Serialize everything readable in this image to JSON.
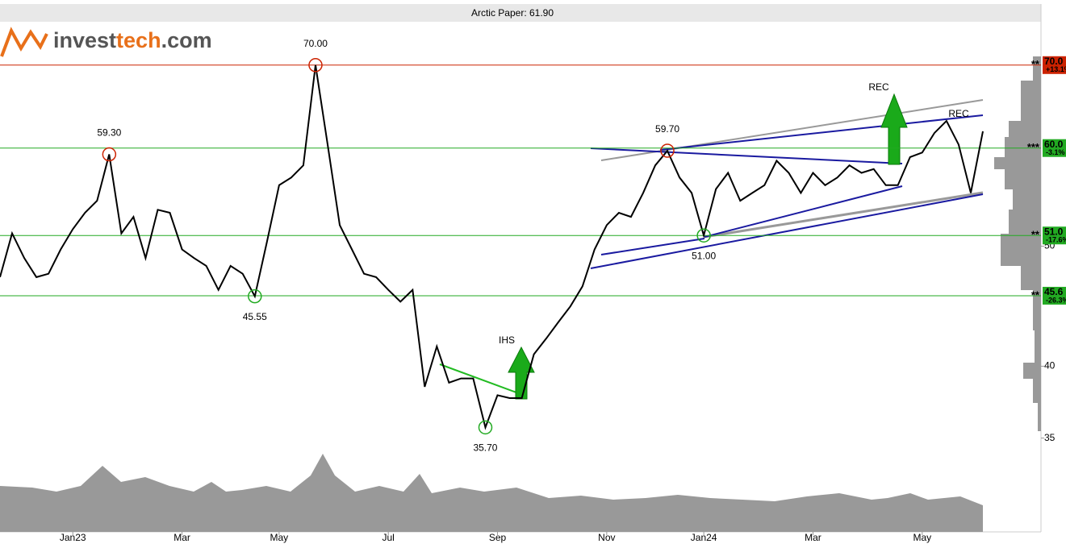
{
  "chart_data": {
    "type": "line",
    "title": "Arctic Paper: 61.90",
    "logo": [
      "invest",
      "tech",
      ".com"
    ],
    "categories": [
      null,
      null,
      null,
      null,
      null,
      null,
      "Jan23",
      null,
      null,
      null,
      null,
      null,
      null,
      null,
      null,
      "Mar",
      null,
      null,
      null,
      null,
      null,
      null,
      null,
      "May",
      null,
      null,
      null,
      null,
      null,
      null,
      null,
      null,
      "Jul",
      null,
      null,
      null,
      null,
      null,
      null,
      null,
      null,
      "Sep",
      null,
      null,
      null,
      null,
      null,
      null,
      null,
      null,
      "Nov",
      null,
      null,
      null,
      null,
      null,
      null,
      null,
      "Jan24",
      null,
      null,
      null,
      null,
      null,
      null,
      null,
      null,
      "Mar",
      null,
      null,
      null,
      null,
      null,
      null,
      null,
      null,
      "May",
      null,
      null,
      null,
      null,
      null
    ],
    "values": [
      47.2,
      51.2,
      48.9,
      47.2,
      47.5,
      49.7,
      51.6,
      53.2,
      54.4,
      59.3,
      51.2,
      52.8,
      48.9,
      53.5,
      53.2,
      49.7,
      48.9,
      48.2,
      46.1,
      48.2,
      47.5,
      45.55,
      50.4,
      56.0,
      56.8,
      58.1,
      70.0,
      60.4,
      52.0,
      49.7,
      47.5,
      47.2,
      46.1,
      45.1,
      46.1,
      38.5,
      41.5,
      38.8,
      39.1,
      39.1,
      35.7,
      37.9,
      37.7,
      37.7,
      40.9,
      42.1,
      43.4,
      44.7,
      46.4,
      49.7,
      52.0,
      53.2,
      52.8,
      55.2,
      58.1,
      59.7,
      56.8,
      55.2,
      51.0,
      55.6,
      57.3,
      54.4,
      55.2,
      56.0,
      58.6,
      57.3,
      55.2,
      57.3,
      56.0,
      56.8,
      58.1,
      57.3,
      57.7,
      56.0,
      56.0,
      59.0,
      59.5,
      61.7,
      63.1,
      60.4,
      55.2,
      61.9
    ],
    "value_labels": [
      null,
      null,
      null,
      null,
      null,
      null,
      null,
      null,
      null,
      "59.30",
      null,
      null,
      null,
      null,
      null,
      null,
      null,
      null,
      null,
      null,
      null,
      "45.55",
      null,
      null,
      null,
      null,
      "70.00",
      null,
      null,
      null,
      null,
      null,
      null,
      null,
      null,
      null,
      null,
      null,
      null,
      null,
      "35.70",
      null,
      null,
      null,
      null,
      null,
      null,
      null,
      null,
      null,
      null,
      null,
      null,
      null,
      null,
      "59.70",
      null,
      null,
      "51.00",
      null,
      null,
      null,
      null,
      null,
      null,
      null,
      null,
      null,
      null,
      null,
      null,
      null,
      null,
      null,
      null,
      null,
      null,
      null,
      null,
      null,
      null,
      null
    ],
    "color": "#000000",
    "log": true,
    "ylim": [
      29.4,
      76.1
    ],
    "yticks": [
      35,
      40,
      50
    ],
    "levels": [
      {
        "value": 70,
        "label": "70.0",
        "change": "+13.1%",
        "stars": "**",
        "color": "#cc2200"
      },
      {
        "value": 60,
        "label": "60.0",
        "change": "-3.1%",
        "stars": "***",
        "color": "#22aa22"
      },
      {
        "value": 51,
        "label": "51.0",
        "change": "-17.6%",
        "stars": "**",
        "color": "#22aa22"
      },
      {
        "value": 45.6,
        "label": "45.6",
        "change": "-26.3%",
        "stars": "**",
        "color": "#22aa22"
      }
    ],
    "annotations": [
      "IHS",
      "REC",
      "REC"
    ]
  }
}
